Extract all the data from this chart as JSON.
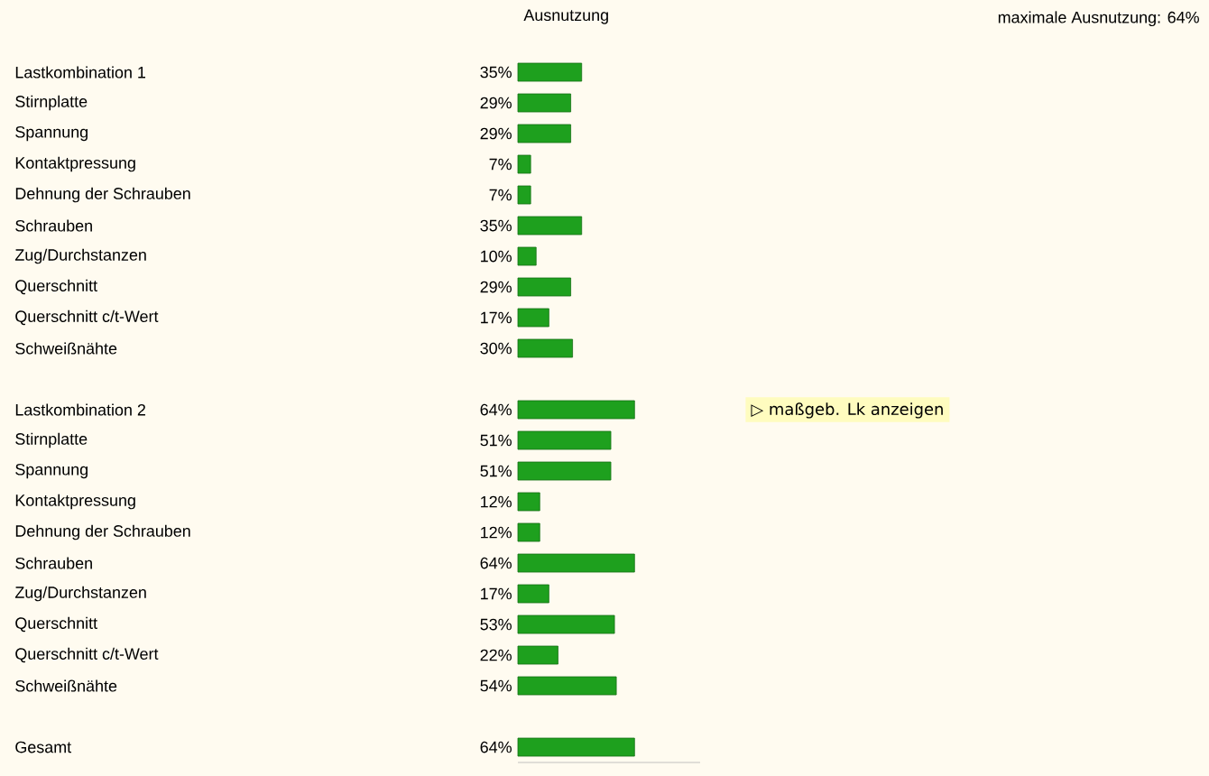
{
  "chart_data": {
    "type": "bar",
    "orientation": "horizontal",
    "xlabel": "Ausnutzung",
    "categories": [
      "Lastkombination 1",
      "Stirnplatte",
      "Spannung",
      "Kontaktpressung",
      "Dehnung der Schrauben",
      "Schrauben",
      "Zug/Durchstanzen",
      "Querschnitt",
      "Querschnitt c/t-Wert",
      "Schweißnähte",
      null,
      "Lastkombination 2",
      "Stirnplatte",
      "Spannung",
      "Kontaktpressung",
      "Dehnung der Schrauben",
      "Schrauben",
      "Zug/Durchstanzen",
      "Querschnitt",
      "Querschnitt c/t-Wert",
      "Schweißnähte",
      null,
      "Gesamt"
    ],
    "values": [
      35,
      29,
      29,
      7,
      7,
      35,
      10,
      29,
      17,
      30,
      null,
      64,
      51,
      51,
      12,
      12,
      64,
      17,
      53,
      22,
      54,
      null,
      64
    ],
    "value_labels": [
      "35%",
      "29%",
      "29%",
      "7%",
      "7%",
      "35%",
      "10%",
      "29%",
      "17%",
      "30%",
      null,
      "64%",
      "51%",
      "51%",
      "12%",
      "12%",
      "64%",
      "17%",
      "53%",
      "22%",
      "54%",
      null,
      "64%"
    ],
    "color": "#1ea01e",
    "xlim": [
      0,
      100
    ],
    "tick_labels": "y",
    "annotations": [
      "maximale Ausnutzung: 64%",
      "▷ maßgeb. Lk anzeigen"
    ]
  }
}
